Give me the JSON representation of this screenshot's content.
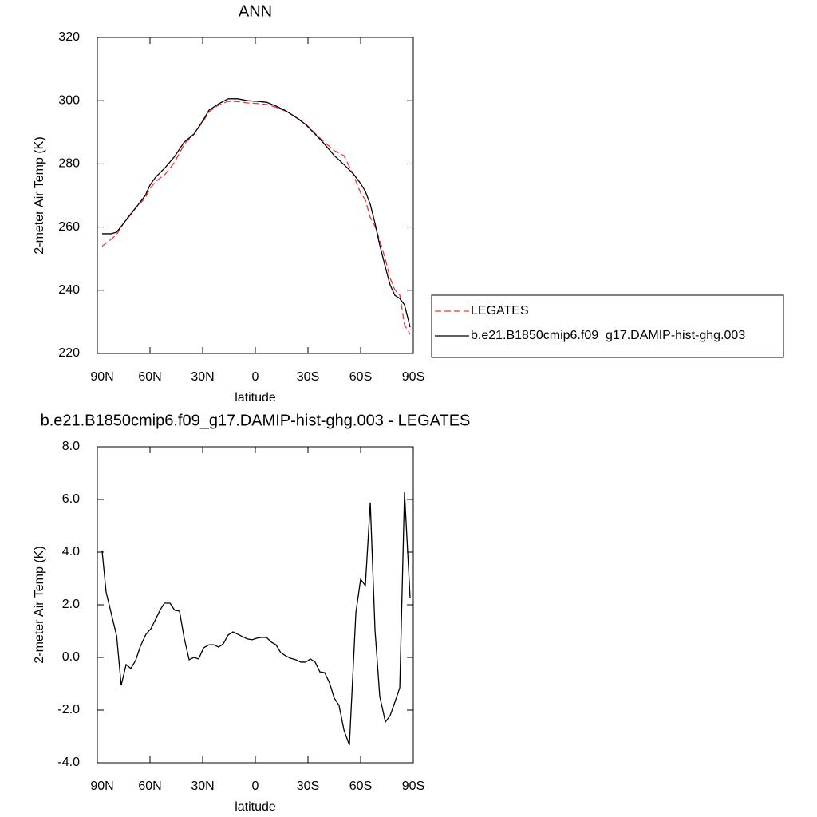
{
  "chart_data": [
    {
      "type": "line",
      "title": "ANN",
      "xlabel": "latitude",
      "ylabel": "2-meter Air Temp (K)",
      "x": [
        87.3,
        82,
        79,
        73.6,
        68.2,
        62.7,
        60,
        56.8,
        51.4,
        45.9,
        40.5,
        35,
        29.5,
        26.4,
        20.9,
        15.5,
        10,
        4.5,
        -0.9,
        -6.4,
        -11.8,
        -17.3,
        -23.2,
        -28.6,
        -34.1,
        -39.5,
        -45,
        -50.5,
        -55.9,
        -60,
        -62.7,
        -65.5,
        -68.2,
        -70.9,
        -74.1,
        -76.8,
        -79.5,
        -82.3,
        -85,
        -88.2
      ],
      "series": [
        {
          "name": "LEGATES",
          "color": "#ff3030",
          "dash": "dashed",
          "values": [
            253.9,
            256.2,
            257.6,
            262.5,
            266.1,
            269.2,
            272.2,
            274.4,
            276.7,
            280.6,
            286.2,
            289.4,
            293.6,
            296.5,
            298.6,
            299.8,
            299.7,
            299.3,
            299.1,
            298.8,
            297.9,
            296.7,
            294.8,
            292.7,
            289.6,
            286.8,
            284.2,
            282.6,
            276.5,
            270.8,
            268.6,
            263,
            260.2,
            255.8,
            249.8,
            243.9,
            240.1,
            238.5,
            229.1,
            226.1
          ]
        },
        {
          "name": "b.e21.B1850cmip6.f09_g17.DAMIP-hist-ghg.003",
          "color": "#000000",
          "dash": "solid",
          "values": [
            257.9,
            257.9,
            258.4,
            262.2,
            266,
            270,
            273.3,
            275.8,
            278.8,
            282.4,
            286.9,
            289.4,
            294,
            297,
            299,
            300.6,
            300.6,
            300,
            299.8,
            299.5,
            298.3,
            296.8,
            294.7,
            292.5,
            289.4,
            286.2,
            282.6,
            279.8,
            276.8,
            273.8,
            271.3,
            267.2,
            261.2,
            254.3,
            247.3,
            241.7,
            238.4,
            237.4,
            235.4,
            228.3
          ]
        }
      ],
      "xlim": [
        90,
        -90
      ],
      "xticks": [
        {
          "value": 90,
          "label": "90N"
        },
        {
          "value": 60,
          "label": "60N"
        },
        {
          "value": 30,
          "label": "30N"
        },
        0,
        {
          "value": -30,
          "label": "30S"
        },
        {
          "value": -60,
          "label": "60S"
        },
        {
          "value": -90,
          "label": "90S"
        }
      ],
      "ylim": [
        220,
        320
      ],
      "yticks": [
        220,
        240,
        260,
        280,
        300,
        320
      ],
      "legend": "right"
    },
    {
      "type": "line",
      "title": "b.e21.B1850cmip6.f09_g17.DAMIP-hist-ghg.003 - LEGATES",
      "xlabel": "latitude",
      "ylabel": "2-meter Air Temp (K)",
      "x": [
        87.3,
        85,
        79,
        76.4,
        73.6,
        70.9,
        68.2,
        65.5,
        62.3,
        59.5,
        56.8,
        54.1,
        51.8,
        48.6,
        45.9,
        43.2,
        40.5,
        37.7,
        35,
        32.3,
        29.5,
        26.4,
        23.6,
        20.9,
        18.2,
        15.5,
        12.7,
        10,
        7.3,
        4.5,
        1.8,
        -0.9,
        -3.6,
        -6.4,
        -9.1,
        -11.8,
        -14.5,
        -17.3,
        -20,
        -23.2,
        -25.9,
        -28.6,
        -31.4,
        -34.1,
        -36.8,
        -39.5,
        -42.3,
        -45,
        -47.7,
        -50.5,
        -53.6,
        -57.3,
        -60,
        -62.7,
        -65.5,
        -68.2,
        -70.9,
        -74.1,
        -76.8,
        -79.5,
        -82.3,
        -85,
        -88.2
      ],
      "series": [
        {
          "color": "#000000",
          "dash": "solid",
          "values": [
            4.06,
            2.48,
            0.82,
            -1.06,
            -0.27,
            -0.42,
            -0.12,
            0.42,
            0.88,
            1.09,
            1.45,
            1.82,
            2.06,
            2.06,
            1.79,
            1.76,
            0.73,
            -0.09,
            0,
            -0.06,
            0.36,
            0.48,
            0.48,
            0.39,
            0.52,
            0.85,
            0.97,
            0.88,
            0.79,
            0.7,
            0.67,
            0.73,
            0.76,
            0.76,
            0.58,
            0.48,
            0.18,
            0.06,
            -0.03,
            -0.09,
            -0.18,
            -0.18,
            -0.06,
            -0.18,
            -0.55,
            -0.58,
            -0.97,
            -1.55,
            -1.82,
            -2.76,
            -3.33,
            1.7,
            2.97,
            2.73,
            5.88,
            1.03,
            -1.48,
            -2.45,
            -2.21,
            -1.7,
            -1.15,
            6.27,
            2.24
          ]
        }
      ],
      "xlim": [
        90,
        -90
      ],
      "xticks": [
        {
          "value": 90,
          "label": "90N"
        },
        {
          "value": 60,
          "label": "60N"
        },
        {
          "value": 30,
          "label": "30N"
        },
        0,
        {
          "value": -30,
          "label": "30S"
        },
        {
          "value": -60,
          "label": "60S"
        },
        {
          "value": -90,
          "label": "90S"
        }
      ],
      "ylim": [
        -4,
        8
      ],
      "yticks": [
        {
          "value": -4,
          "label": "-4.0"
        },
        {
          "value": -2,
          "label": "-2.0"
        },
        {
          "value": 0,
          "label": "0.0"
        },
        {
          "value": 2,
          "label": "2.0"
        },
        {
          "value": 4,
          "label": "4.0"
        },
        {
          "value": 6,
          "label": "6.0"
        },
        {
          "value": 8,
          "label": "8.0"
        }
      ]
    }
  ]
}
